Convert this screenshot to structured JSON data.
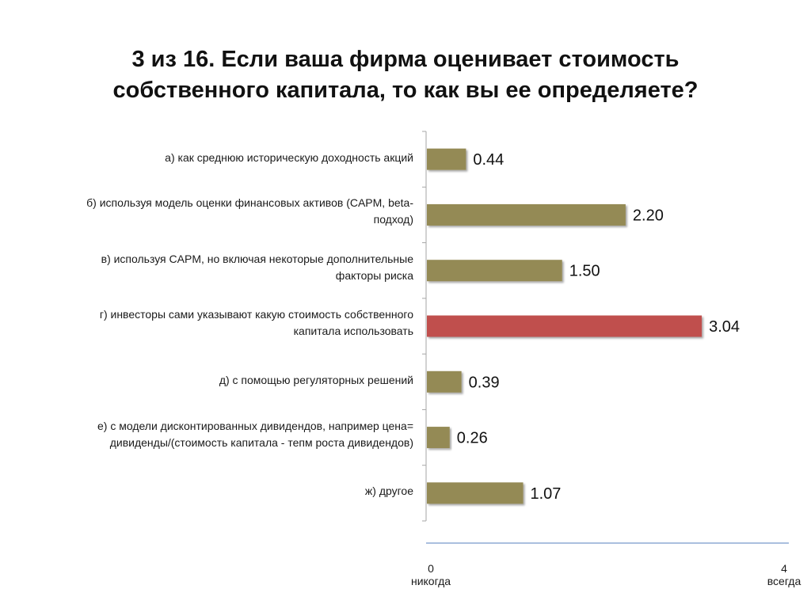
{
  "title": {
    "line1": "3 из 16. Если ваша фирма оценивает стоимость",
    "line2": "собственного капитала, то как вы ее определяете?"
  },
  "chart_data": {
    "type": "bar",
    "orientation": "horizontal",
    "title": "3 из 16. Если ваша фирма оценивает стоимость собственного капитала, то как вы ее определяете?",
    "categories": [
      "а) как среднюю историческую доходность акций",
      "б) используя модель оценки финансовых активов (CAPM, beta-подход)",
      "в) используя CAPM, но включая некоторые дополнительные факторы риска",
      "г) инвесторы сами указывают какую стоимость собственного капитала использовать",
      "д) с помощью регуляторных решений",
      "е) с модели дисконтированных дивидендов, например цена= дивиденды/(стоимость капитала - тепм роста дивидендов)",
      "ж) другое"
    ],
    "category_lines": [
      [
        "а) как среднюю историческую доходность акций"
      ],
      [
        "б) используя модель оценки финансовых активов (CAPM, beta-",
        "подход)"
      ],
      [
        "в) используя CAPM, но включая некоторые дополнительные",
        "факторы риска"
      ],
      [
        "г) инвесторы сами указывают какую стоимость собственного",
        "капитала использовать"
      ],
      [
        "д) с помощью регуляторных решений"
      ],
      [
        "е) с модели дисконтированных дивидендов, например цена=",
        "дивиденды/(стоимость капитала - тепм роста дивидендов)"
      ],
      [
        "ж) другое"
      ]
    ],
    "values": [
      0.44,
      2.2,
      1.5,
      3.04,
      0.39,
      0.26,
      1.07
    ],
    "value_labels": [
      "0.44",
      "2.20",
      "1.50",
      "3.04",
      "0.39",
      "0.26",
      "1.07"
    ],
    "highlight_index": 3,
    "colors": {
      "bar": "#948A54",
      "highlight": "#C0504D",
      "axis": "#8EAAD3",
      "category_axis": "#A6A6A6"
    },
    "xlim": [
      0,
      4
    ],
    "x_axis": {
      "min_label": "0",
      "min_caption": "никогда",
      "max_label": "4",
      "max_caption": "всегда"
    },
    "grid": false,
    "legend": "none"
  }
}
